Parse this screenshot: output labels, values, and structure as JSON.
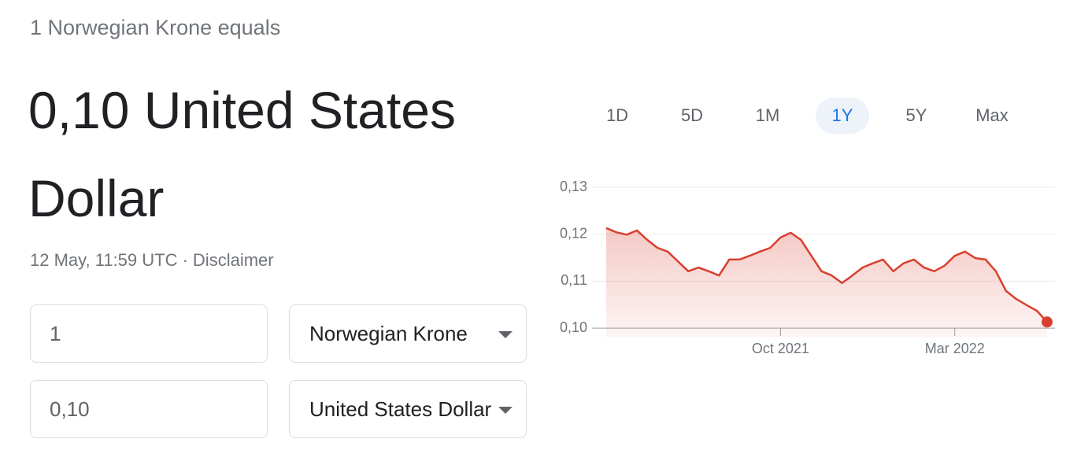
{
  "header": {
    "intro": "1 Norwegian Krone equals",
    "result": "0,10 United States Dollar",
    "timestamp": "12 May, 11:59 UTC ·",
    "disclaimer": "Disclaimer"
  },
  "converter": {
    "amount_from": "1",
    "currency_from": "Norwegian Krone",
    "amount_to": "0,10",
    "currency_to": "United States Dollar"
  },
  "ranges": {
    "options": [
      "1D",
      "5D",
      "1M",
      "1Y",
      "5Y",
      "Max"
    ],
    "selected": 3
  },
  "chart_data": {
    "type": "line",
    "color": "#d93f2f",
    "area": true,
    "grid": true,
    "categories": [
      null,
      null,
      null,
      null,
      null,
      null,
      null,
      null,
      null,
      null,
      null,
      null,
      null,
      null,
      null,
      null,
      null,
      "Oct 2021",
      null,
      null,
      null,
      null,
      null,
      null,
      null,
      null,
      null,
      null,
      null,
      null,
      null,
      null,
      null,
      null,
      "Mar 2022",
      null,
      null,
      null,
      null,
      null,
      null,
      null,
      null,
      null
    ],
    "values": [
      0.1213,
      0.1204,
      0.1199,
      0.1208,
      0.1188,
      0.1171,
      0.1163,
      0.1142,
      0.1121,
      0.1129,
      0.1121,
      0.1112,
      0.1146,
      0.1146,
      0.1154,
      0.1163,
      0.1171,
      0.1193,
      0.1203,
      0.1188,
      0.1154,
      0.1121,
      0.1112,
      0.1096,
      0.1112,
      0.1129,
      0.1138,
      0.1146,
      0.1121,
      0.1138,
      0.1146,
      0.1129,
      0.1121,
      0.1133,
      0.1154,
      0.1163,
      0.1149,
      0.1146,
      0.1121,
      0.1079,
      0.1062,
      0.1049,
      0.1037,
      0.1013
    ],
    "ylim": [
      0.098,
      0.13
    ],
    "yticks": [
      {
        "value": 0.1,
        "label": "0,10"
      },
      {
        "value": 0.11,
        "label": "0,11"
      },
      {
        "value": 0.12,
        "label": "0,12"
      },
      {
        "value": 0.13,
        "label": "0,13"
      }
    ]
  }
}
